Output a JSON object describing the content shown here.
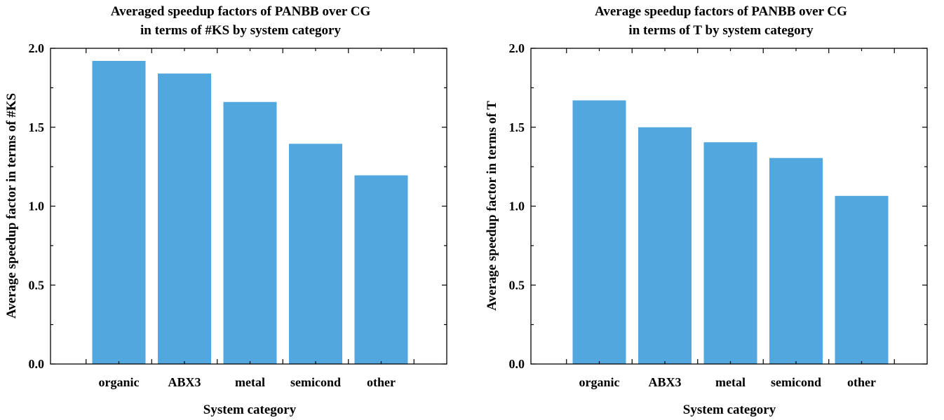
{
  "colors": {
    "bar": "#52a7df",
    "axis": "#000000",
    "background": "#ffffff"
  },
  "chart_data": [
    {
      "type": "bar",
      "title": "Averaged speedup factors of PANBB over CG",
      "subtitle": "in terms of #KS by system category",
      "xlabel": "System category",
      "ylabel": "Average speedup factor in terms of #KS",
      "categories": [
        "organic",
        "ABX3",
        "metal",
        "semicond",
        "other"
      ],
      "values": [
        1.92,
        1.84,
        1.66,
        1.395,
        1.195
      ],
      "ylim": [
        0.0,
        2.0
      ],
      "yticks": [
        "0.0",
        "0.5",
        "1.0",
        "1.5",
        "2.0"
      ],
      "grid": false,
      "legend": "none"
    },
    {
      "type": "bar",
      "title": "Average speedup factors of PANBB over CG",
      "subtitle": "in terms of T by system category",
      "xlabel": "System category",
      "ylabel": "Average speedup factor in terms of T",
      "categories": [
        "organic",
        "ABX3",
        "metal",
        "semicond",
        "other"
      ],
      "values": [
        1.67,
        1.5,
        1.405,
        1.305,
        1.065
      ],
      "ylim": [
        0.0,
        2.0
      ],
      "yticks": [
        "0.0",
        "0.5",
        "1.0",
        "1.5",
        "2.0"
      ],
      "grid": false,
      "legend": "none"
    }
  ]
}
